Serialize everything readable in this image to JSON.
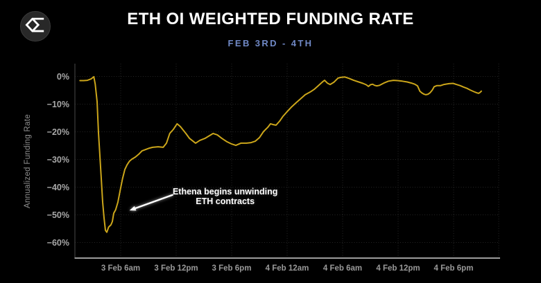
{
  "header": {
    "title": "ETH OI WEIGHTED FUNDING RATE",
    "subtitle": "FEB 3RD - 4TH",
    "logo_icon": "sigma-diamond-logo-icon"
  },
  "colors": {
    "background": "#000000",
    "title": "#ffffff",
    "subtitle_accent": "#7089c6",
    "line": "#cca61a",
    "tick_labels": "#9e9e9e",
    "annotation": "#ffffff"
  },
  "chart_data": {
    "type": "line",
    "title": "ETH OI WEIGHTED FUNDING RATE",
    "subtitle": "FEB 3RD - 4TH",
    "xlabel": "",
    "ylabel": "Annualized Funding Rate",
    "x_unit": "hours since 3 Feb 12am",
    "xlim_hours": [
      1.1,
      46.9
    ],
    "ylim": [
      -65.6,
      4.6
    ],
    "grid": true,
    "legend_position": "none",
    "line_color": "#cca61a",
    "y_ticks": [
      {
        "value": 0,
        "label": "0%"
      },
      {
        "value": -10,
        "label": "−10%"
      },
      {
        "value": -20,
        "label": "−20%"
      },
      {
        "value": -30,
        "label": "−30%"
      },
      {
        "value": -40,
        "label": "−40%"
      },
      {
        "value": -50,
        "label": "−50%"
      },
      {
        "value": -60,
        "label": "−60%"
      }
    ],
    "x_ticks": [
      {
        "hour": 6,
        "label": "3 Feb 6am"
      },
      {
        "hour": 12,
        "label": "3 Feb 12pm"
      },
      {
        "hour": 18,
        "label": "3 Feb 6pm"
      },
      {
        "hour": 24,
        "label": "4 Feb 12am"
      },
      {
        "hour": 30,
        "label": "4 Feb 6am"
      },
      {
        "hour": 36,
        "label": "4 Feb 12pm"
      },
      {
        "hour": 42,
        "label": "4 Feb 6pm"
      }
    ],
    "annotation": {
      "line1": "Ethena begins unwinding",
      "line2": "ETH contracts",
      "text_hour": 17.3,
      "text_value": -41.6,
      "arrow_from_hour": 11.6,
      "arrow_from_value": -42.8,
      "arrow_to_hour": 6.95,
      "arrow_to_value": -48.4
    },
    "series": [
      {
        "name": "ETH OI weighted funding rate (annualized)",
        "points": [
          [
            1.6,
            -1.5
          ],
          [
            2.0,
            -1.5
          ],
          [
            2.4,
            -1.4
          ],
          [
            2.8,
            -0.9
          ],
          [
            3.1,
            -0.1
          ],
          [
            3.25,
            -2.8
          ],
          [
            3.45,
            -9.1
          ],
          [
            3.6,
            -20.4
          ],
          [
            3.75,
            -28.6
          ],
          [
            3.9,
            -36.9
          ],
          [
            4.05,
            -45.4
          ],
          [
            4.2,
            -51.1
          ],
          [
            4.35,
            -55.6
          ],
          [
            4.5,
            -56.3
          ],
          [
            4.7,
            -54.4
          ],
          [
            4.95,
            -53.6
          ],
          [
            5.1,
            -52.4
          ],
          [
            5.25,
            -49.4
          ],
          [
            5.45,
            -48.2
          ],
          [
            5.7,
            -45.4
          ],
          [
            5.95,
            -41.1
          ],
          [
            6.2,
            -36.9
          ],
          [
            6.45,
            -33.6
          ],
          [
            6.7,
            -31.9
          ],
          [
            6.95,
            -30.6
          ],
          [
            7.2,
            -29.9
          ],
          [
            7.6,
            -29.1
          ],
          [
            7.95,
            -28.1
          ],
          [
            8.3,
            -26.9
          ],
          [
            8.7,
            -26.4
          ],
          [
            9.1,
            -25.9
          ],
          [
            9.45,
            -25.6
          ],
          [
            10.05,
            -25.4
          ],
          [
            10.6,
            -25.6
          ],
          [
            10.95,
            -24.1
          ],
          [
            11.3,
            -20.6
          ],
          [
            11.7,
            -19.1
          ],
          [
            12.1,
            -17.1
          ],
          [
            12.45,
            -18.1
          ],
          [
            13.05,
            -20.6
          ],
          [
            13.45,
            -22.4
          ],
          [
            14.1,
            -24.1
          ],
          [
            14.55,
            -23.1
          ],
          [
            15.1,
            -22.4
          ],
          [
            16.0,
            -20.6
          ],
          [
            16.45,
            -21.1
          ],
          [
            16.95,
            -22.4
          ],
          [
            17.5,
            -23.6
          ],
          [
            18.0,
            -24.4
          ],
          [
            18.45,
            -24.9
          ],
          [
            19.0,
            -24.1
          ],
          [
            19.6,
            -24.1
          ],
          [
            20.1,
            -23.9
          ],
          [
            20.55,
            -23.4
          ],
          [
            21.0,
            -22.1
          ],
          [
            21.45,
            -19.9
          ],
          [
            21.9,
            -18.4
          ],
          [
            22.2,
            -17.1
          ],
          [
            22.5,
            -17.4
          ],
          [
            22.8,
            -17.6
          ],
          [
            23.2,
            -16.1
          ],
          [
            23.55,
            -14.4
          ],
          [
            23.95,
            -12.9
          ],
          [
            24.45,
            -11.1
          ],
          [
            25.0,
            -9.4
          ],
          [
            25.45,
            -8.1
          ],
          [
            25.95,
            -6.6
          ],
          [
            26.5,
            -5.6
          ],
          [
            26.95,
            -4.6
          ],
          [
            27.45,
            -3.1
          ],
          [
            27.85,
            -1.9
          ],
          [
            28.05,
            -1.4
          ],
          [
            28.35,
            -2.4
          ],
          [
            28.65,
            -2.9
          ],
          [
            29.05,
            -2.1
          ],
          [
            29.5,
            -0.6
          ],
          [
            29.85,
            -0.3
          ],
          [
            30.25,
            -0.2
          ],
          [
            30.7,
            -0.7
          ],
          [
            31.2,
            -1.4
          ],
          [
            31.75,
            -2.0
          ],
          [
            32.2,
            -2.5
          ],
          [
            32.55,
            -3.0
          ],
          [
            32.8,
            -3.6
          ],
          [
            33.0,
            -3.0
          ],
          [
            33.25,
            -2.8
          ],
          [
            33.45,
            -3.2
          ],
          [
            33.7,
            -3.4
          ],
          [
            34.0,
            -3.2
          ],
          [
            34.45,
            -2.4
          ],
          [
            34.95,
            -1.7
          ],
          [
            35.5,
            -1.4
          ],
          [
            35.95,
            -1.5
          ],
          [
            36.45,
            -1.7
          ],
          [
            37.0,
            -2.0
          ],
          [
            37.45,
            -2.4
          ],
          [
            37.8,
            -2.8
          ],
          [
            38.1,
            -3.4
          ],
          [
            38.35,
            -5.3
          ],
          [
            38.55,
            -5.9
          ],
          [
            38.8,
            -6.4
          ],
          [
            39.0,
            -6.6
          ],
          [
            39.25,
            -6.4
          ],
          [
            39.45,
            -5.9
          ],
          [
            39.7,
            -4.9
          ],
          [
            39.9,
            -3.7
          ],
          [
            40.2,
            -3.3
          ],
          [
            40.6,
            -3.3
          ],
          [
            40.95,
            -2.9
          ],
          [
            41.5,
            -2.6
          ],
          [
            41.95,
            -2.5
          ],
          [
            42.3,
            -2.9
          ],
          [
            42.7,
            -3.3
          ],
          [
            43.05,
            -3.8
          ],
          [
            43.45,
            -4.3
          ],
          [
            43.8,
            -4.9
          ],
          [
            44.2,
            -5.5
          ],
          [
            44.5,
            -5.9
          ],
          [
            44.7,
            -6.1
          ],
          [
            44.85,
            -5.8
          ],
          [
            45.0,
            -5.3
          ]
        ]
      }
    ]
  }
}
